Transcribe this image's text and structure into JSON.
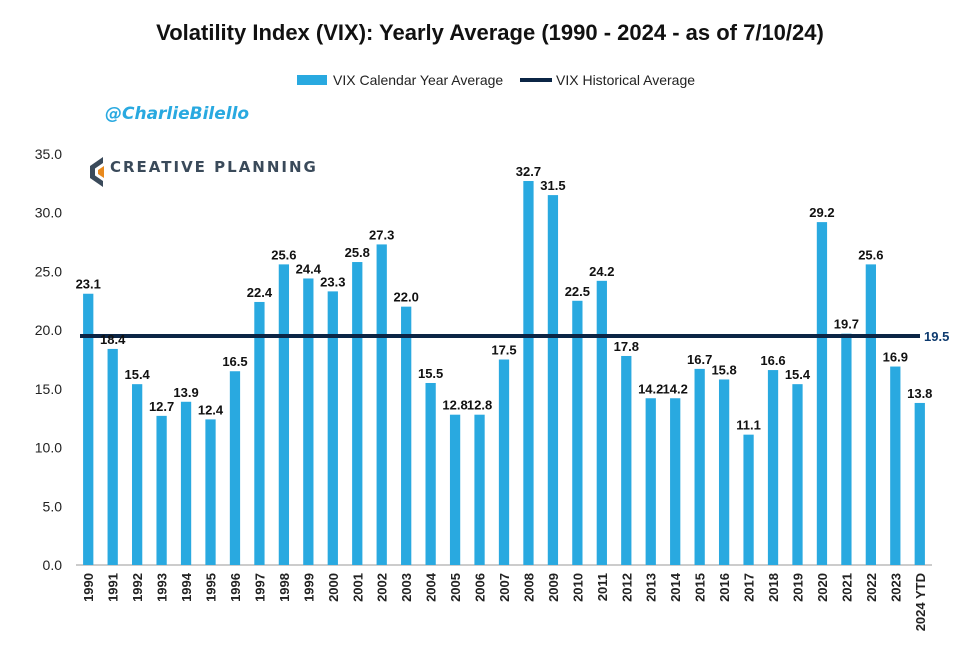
{
  "chart_data": {
    "type": "bar",
    "title": "Volatility Index (VIX): Yearly Average (1990 - 2024 - as of 7/10/24)",
    "handle": "@CharlieBilello",
    "brand": "CREATIVE PLANNING",
    "categories": [
      "1990",
      "1991",
      "1992",
      "1993",
      "1994",
      "1995",
      "1996",
      "1997",
      "1998",
      "1999",
      "2000",
      "2001",
      "2002",
      "2003",
      "2004",
      "2005",
      "2006",
      "2007",
      "2008",
      "2009",
      "2010",
      "2011",
      "2012",
      "2013",
      "2014",
      "2015",
      "2016",
      "2017",
      "2018",
      "2019",
      "2020",
      "2021",
      "2022",
      "2023",
      "2024 YTD"
    ],
    "series": [
      {
        "name": "VIX Calendar Year Average",
        "color": "#29a9e0",
        "values": [
          23.1,
          18.4,
          15.4,
          12.7,
          13.9,
          12.4,
          16.5,
          22.4,
          25.6,
          24.4,
          23.3,
          25.8,
          27.3,
          22.0,
          15.5,
          12.8,
          12.8,
          17.5,
          32.7,
          31.5,
          22.5,
          24.2,
          17.8,
          14.2,
          14.2,
          16.7,
          15.8,
          11.1,
          16.6,
          15.4,
          29.2,
          19.7,
          25.6,
          16.9,
          13.8
        ],
        "labels": [
          "23.1",
          "18.4",
          "15.4",
          "12.7",
          "13.9",
          "12.4",
          "16.5",
          "22.4",
          "25.6",
          "24.4",
          "23.3",
          "25.8",
          "27.3",
          "22.0",
          "15.5",
          "12.8",
          "12.8",
          "17.5",
          "32.7",
          "31.5",
          "22.5",
          "24.2",
          "17.8",
          "14.2",
          "14.2",
          "16.7",
          "15.8",
          "11.1",
          "16.6",
          "15.4",
          "29.2",
          "19.7",
          "25.6",
          "16.9",
          "13.8"
        ]
      }
    ],
    "reference_line": {
      "name": "VIX Historical Average",
      "value": 19.5,
      "label": "19.5",
      "color": "#0b2545"
    },
    "ylim": [
      0,
      35
    ],
    "yticks": [
      "0.0",
      "5.0",
      "10.0",
      "15.0",
      "20.0",
      "25.0",
      "30.0",
      "35.0"
    ],
    "grid": false,
    "legend_position": "top-center",
    "xlabel": "",
    "ylabel": ""
  }
}
